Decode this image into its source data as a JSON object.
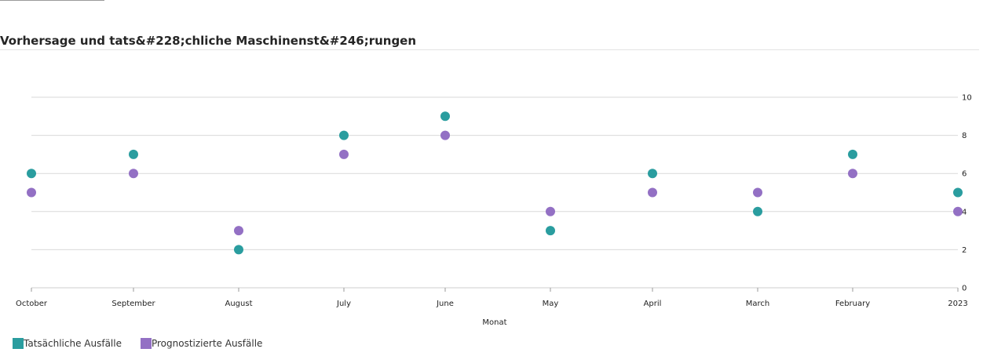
{
  "title": "Vorhersage und tats&#228;chliche Maschinenst&#246;rungen",
  "colors": {
    "actual": "#2a9d9f",
    "forecast": "#9370c4",
    "grid": "#d9d9d9"
  },
  "chart_data": {
    "type": "scatter",
    "title": "Vorhersage und tats&#228;chliche Maschinenst&#246;rungen",
    "xlabel": "Monat",
    "ylabel": "",
    "categories": [
      "October",
      "September",
      "August",
      "July",
      "June",
      "May",
      "April",
      "March",
      "February",
      "2023"
    ],
    "ylim": [
      0,
      10
    ],
    "yticks": [
      0,
      2,
      4,
      6,
      8,
      10
    ],
    "grid": true,
    "legend_position": "bottom-left",
    "series": [
      {
        "name": "Tatsächliche Ausfälle",
        "color": "#2a9d9f",
        "values": [
          6,
          7,
          2,
          8,
          9,
          3,
          6,
          4,
          7,
          5
        ]
      },
      {
        "name": "Prognostizierte Ausfälle",
        "color": "#9370c4",
        "values": [
          5,
          6,
          3,
          7,
          8,
          4,
          5,
          5,
          6,
          4
        ]
      }
    ]
  }
}
